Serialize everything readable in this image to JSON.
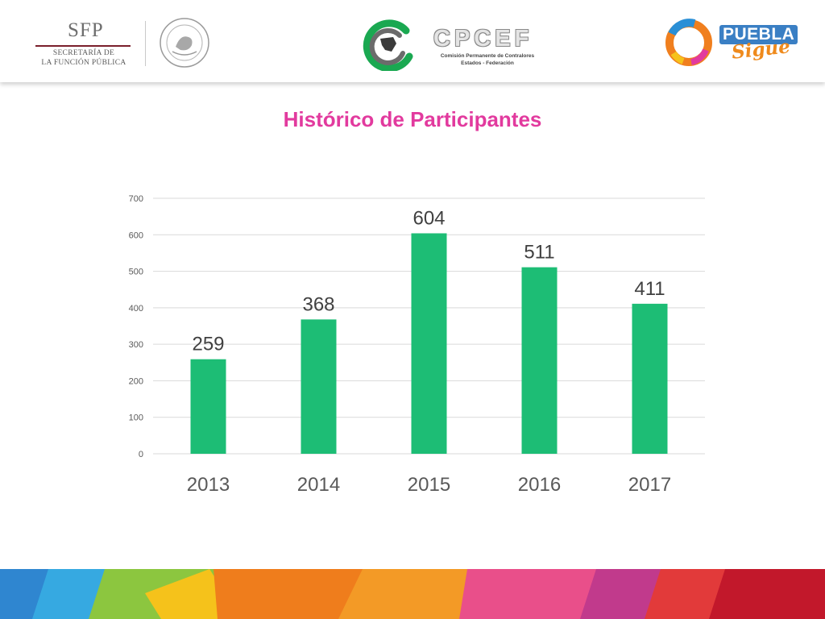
{
  "header": {
    "sfp": {
      "abbr": "SFP",
      "line1": "SECRETARÍA DE",
      "line2": "LA FUNCIÓN PÚBLICA"
    },
    "cpcef": {
      "title": "CPCEF",
      "subtitle1": "Comisión Permanente de Contralores",
      "subtitle2": "Estados - Federación"
    },
    "puebla": {
      "word": "PUEBLA",
      "sigue": "Sigue"
    }
  },
  "slide_title": "Histórico de Participantes",
  "colors": {
    "title": "#e23a9e",
    "bar": "#1dbd75",
    "grid": "#d9d9d9",
    "sfp_rule": "#7a1f2b"
  },
  "chart_data": {
    "type": "bar",
    "title": "",
    "xlabel": "",
    "ylabel": "",
    "categories": [
      "2013",
      "2014",
      "2015",
      "2016",
      "2017"
    ],
    "values": [
      259,
      368,
      604,
      511,
      411
    ],
    "data_labels": [
      "259",
      "368",
      "604",
      "511",
      "411"
    ],
    "ylim": [
      0,
      700
    ],
    "yticks": [
      0,
      100,
      200,
      300,
      400,
      500,
      600,
      700
    ],
    "grid": true,
    "legend": "none"
  }
}
